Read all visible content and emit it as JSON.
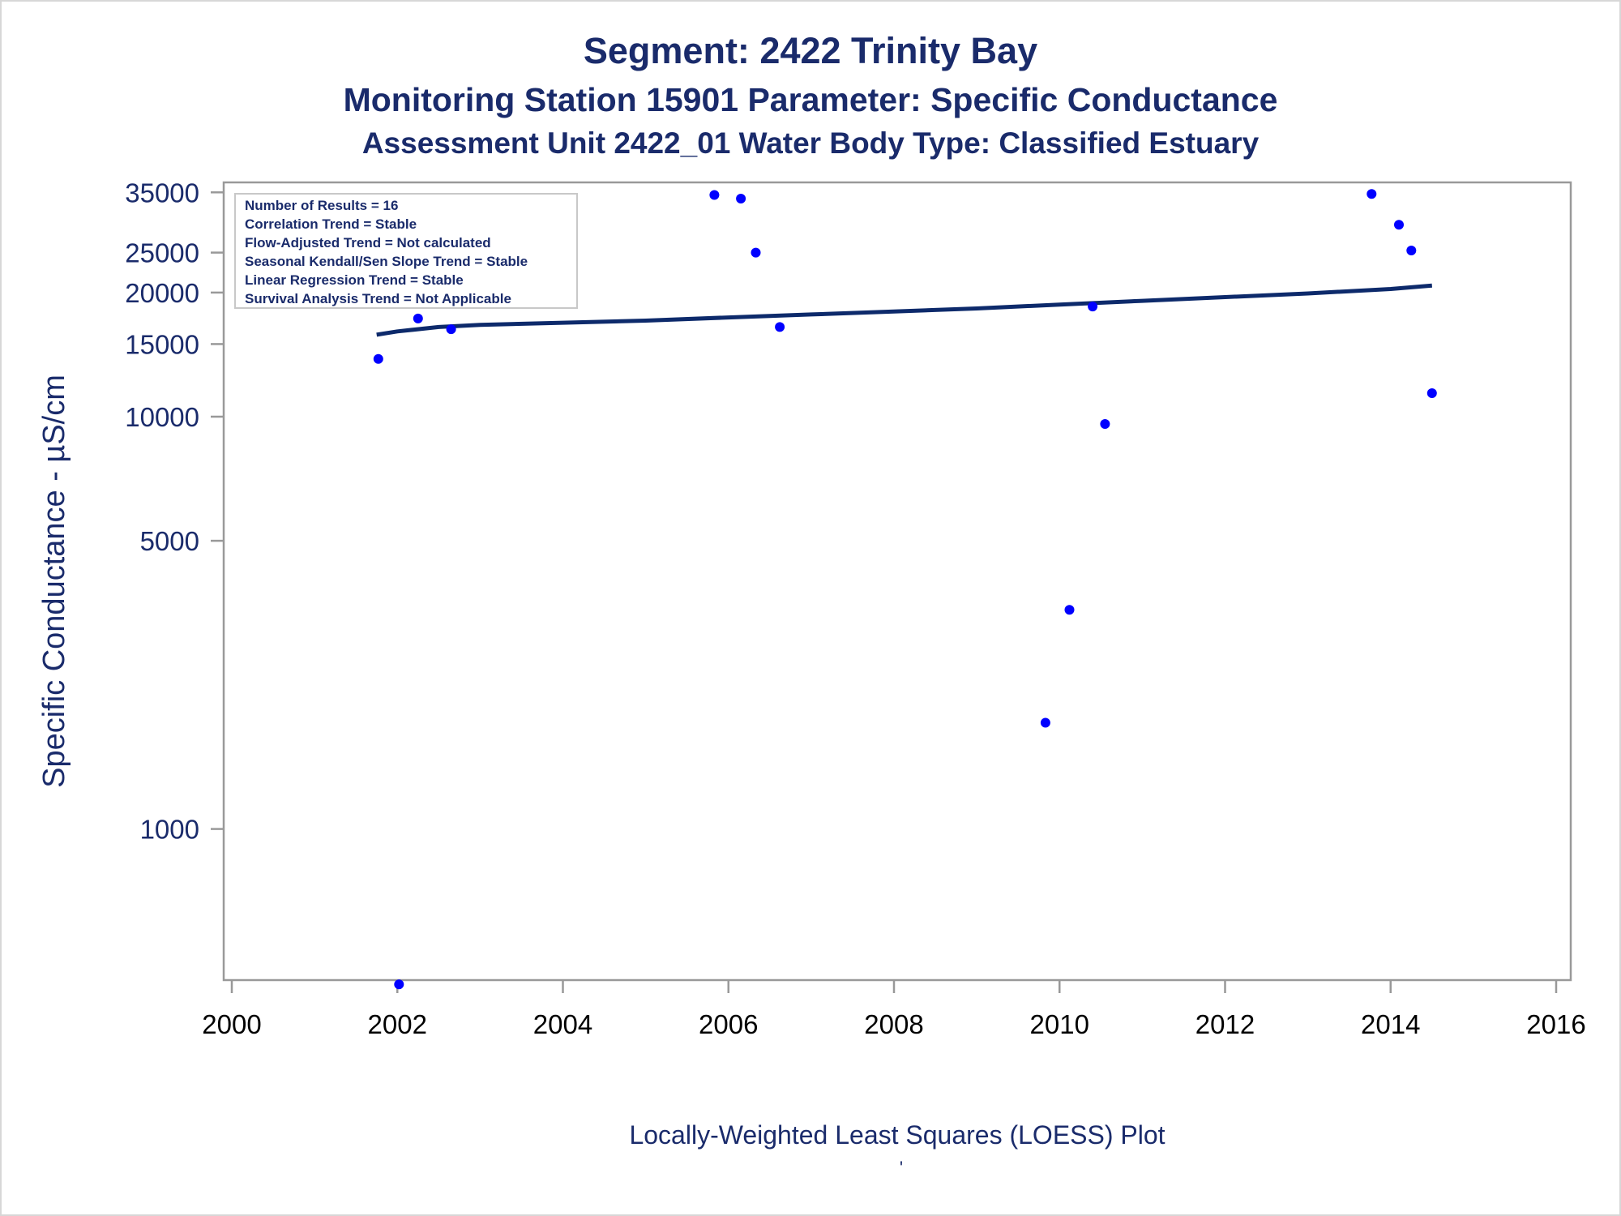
{
  "titles": {
    "line1": "Segment: 2422  Trinity Bay",
    "line2": "Monitoring Station 15901 Parameter: Specific Conductance",
    "line3": "Assessment Unit 2422_01   Water Body Type: Classified Estuary"
  },
  "footer": {
    "plot_label": "Locally-Weighted Least Squares (LOESS) Plot",
    "tick_mark": "'"
  },
  "stats_box": {
    "lines": [
      "Number of Results = 16",
      "Correlation Trend = Stable",
      "Flow-Adjusted Trend = Not calculated",
      "Seasonal Kendall/Sen Slope Trend = Stable",
      "Linear Regression Trend = Stable",
      "Survival Analysis Trend = Not Applicable"
    ]
  },
  "colors": {
    "title": "#1a2b6b",
    "points": "#0000ff",
    "loess_line": "#0d2a6b",
    "axis": "#999999",
    "x_tick_text": "#000000"
  },
  "chart_data": {
    "type": "scatter",
    "xlabel": "",
    "ylabel": "Specific Conductance -  µS/cm",
    "y_scale": "log",
    "xlim": [
      2000,
      2016
    ],
    "ylim": [
      430,
      37000
    ],
    "x_ticks": [
      2000,
      2002,
      2004,
      2006,
      2008,
      2010,
      2012,
      2014,
      2016
    ],
    "y_ticks": [
      1000,
      5000,
      10000,
      15000,
      20000,
      25000,
      35000
    ],
    "grid": false,
    "legend": "none",
    "series": [
      {
        "kind": "points",
        "x": [
          2001.77,
          2002.02,
          2002.25,
          2002.65,
          2005.83,
          2006.15,
          2006.33,
          2006.62,
          2009.83,
          2010.12,
          2010.4,
          2010.55,
          2013.77,
          2014.1,
          2014.25,
          2014.5
        ],
        "y": [
          13800,
          420,
          17300,
          16300,
          34500,
          33800,
          25000,
          16500,
          1810,
          3400,
          18500,
          9600,
          34700,
          29200,
          25300,
          11400
        ]
      },
      {
        "kind": "loess",
        "x": [
          2001.75,
          2002.0,
          2002.5,
          2003.0,
          2004.0,
          2005.0,
          2006.0,
          2007.0,
          2008.0,
          2009.0,
          2010.0,
          2011.0,
          2012.0,
          2013.0,
          2014.0,
          2014.5
        ],
        "y": [
          15800,
          16100,
          16500,
          16700,
          16900,
          17100,
          17400,
          17700,
          18000,
          18300,
          18700,
          19100,
          19500,
          19900,
          20400,
          20800
        ]
      }
    ]
  }
}
